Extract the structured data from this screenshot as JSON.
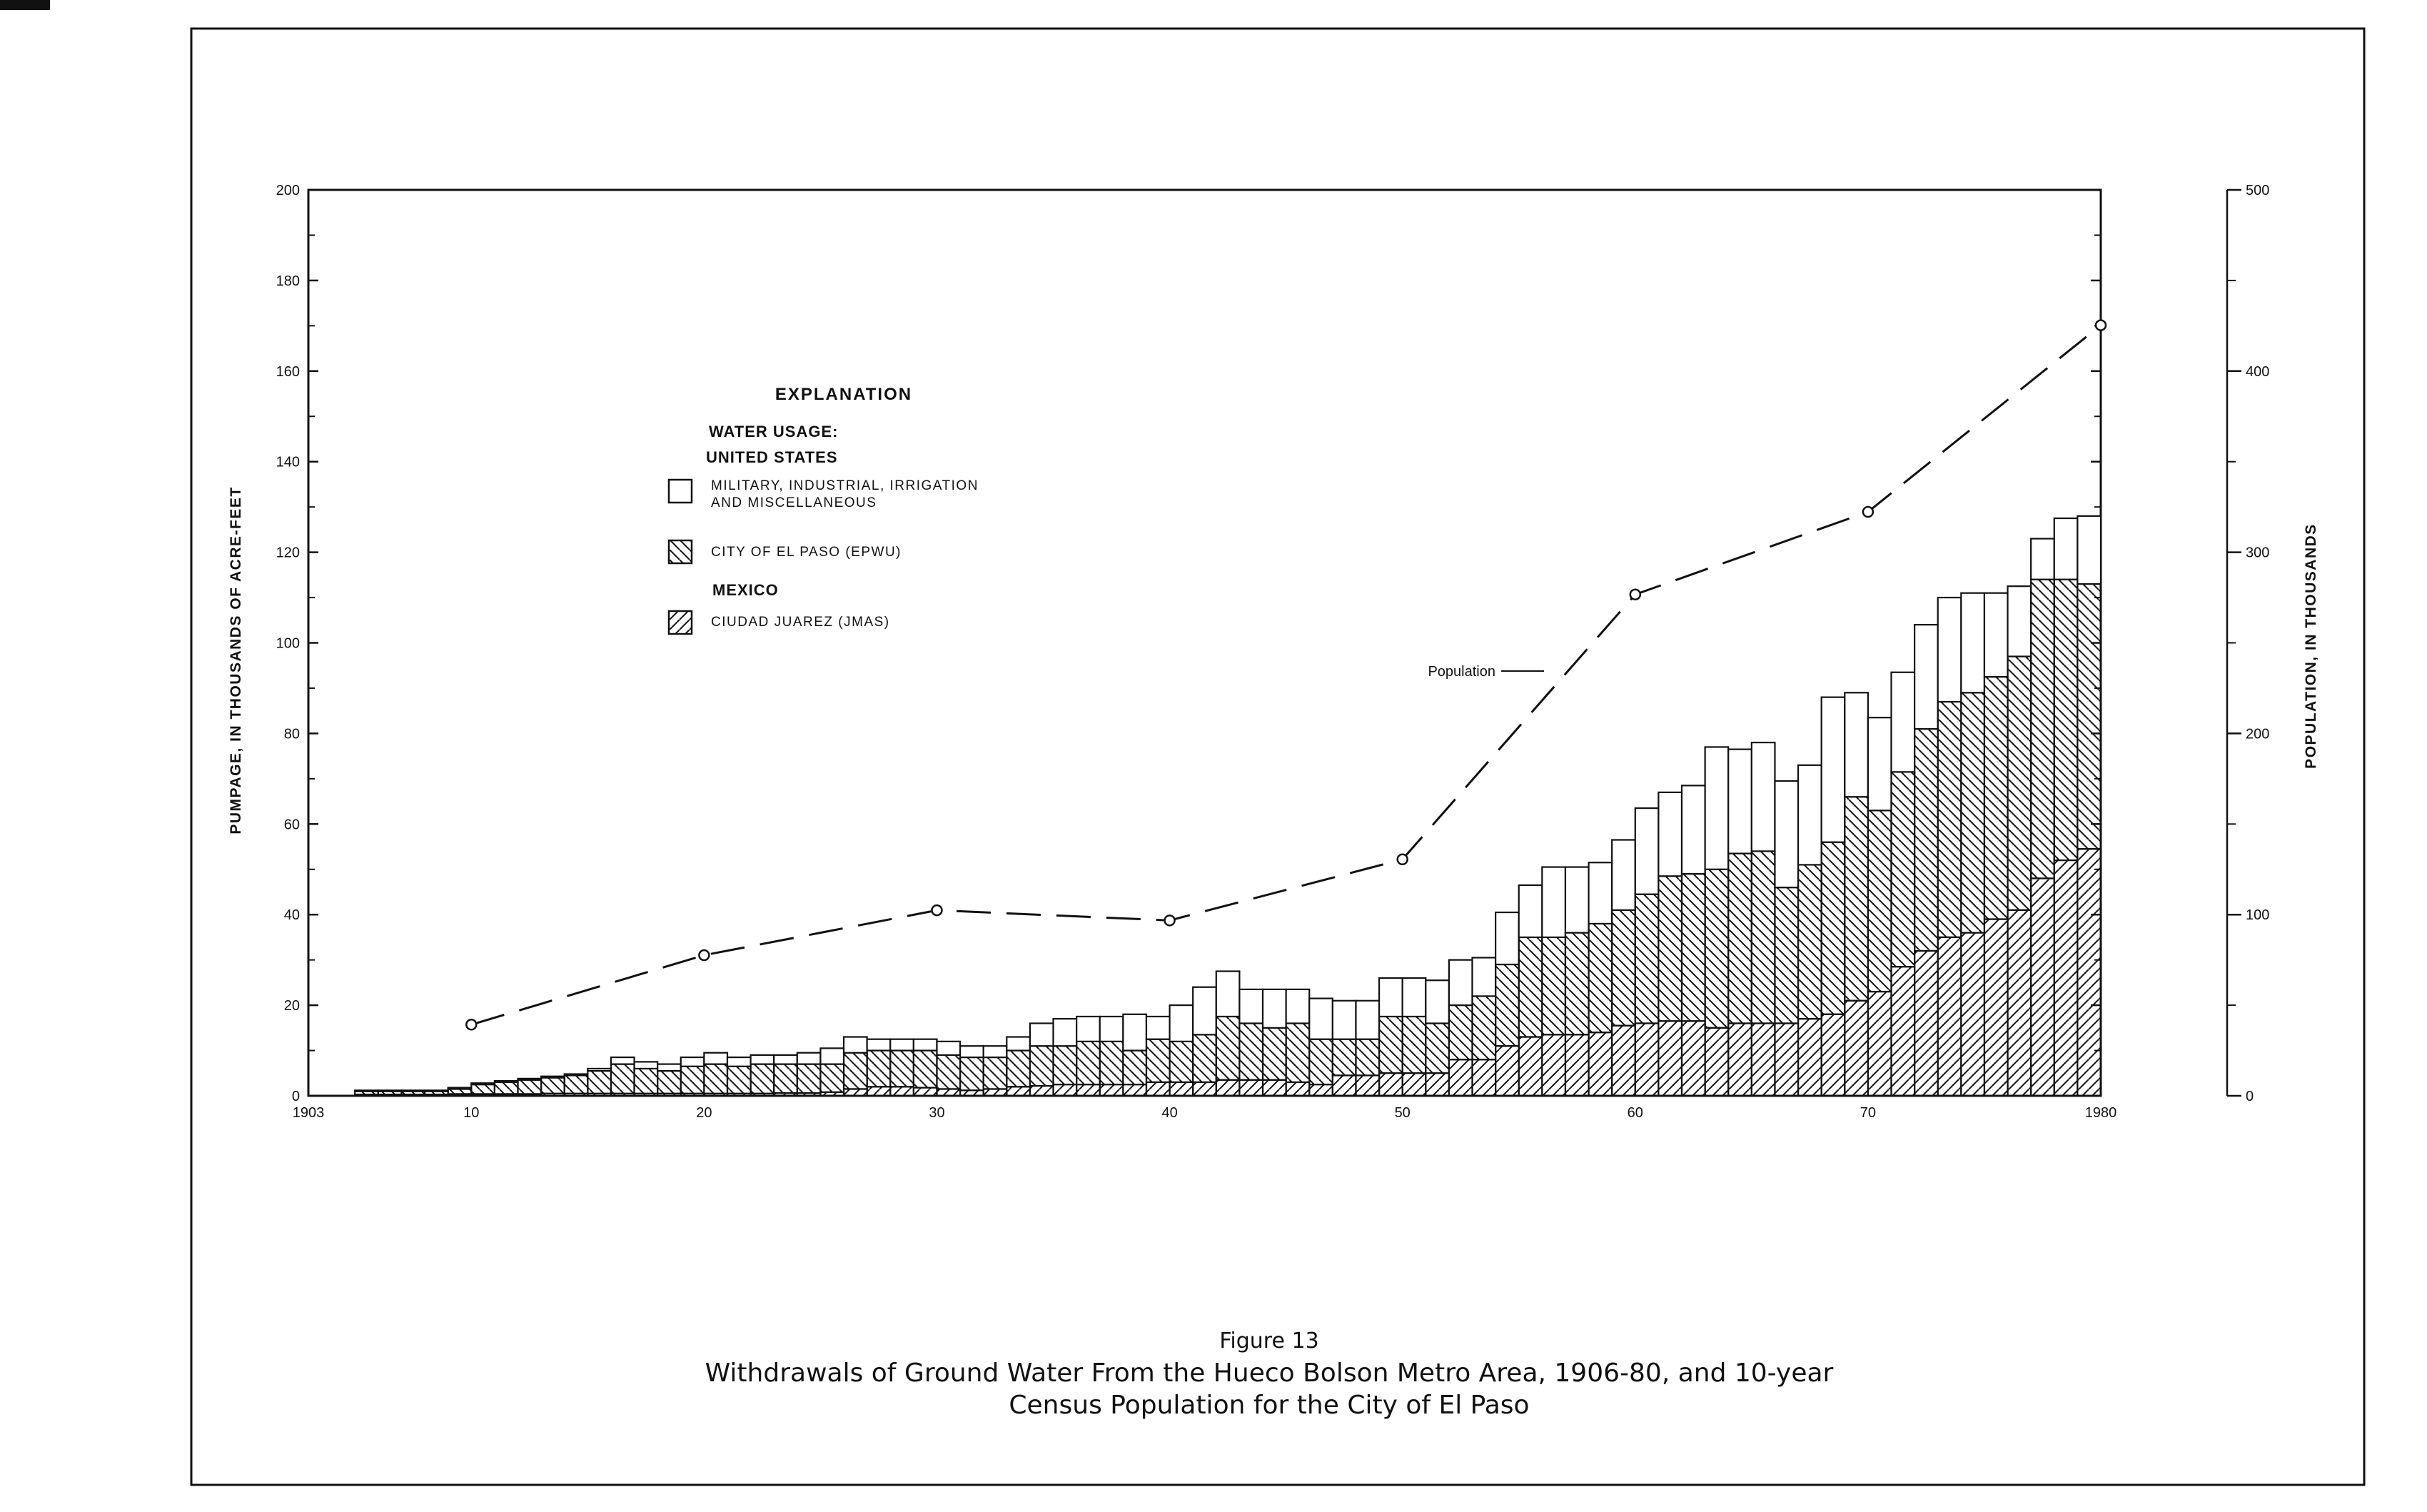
{
  "chart_data": {
    "type": "bar",
    "stacked": true,
    "figure_label": "Figure 13",
    "title": "Withdrawals of Ground Water From the Hueco Bolson Metro Area, 1906-80, and 10-year",
    "title_line2": "Census Population for the City of El Paso",
    "ylabel": "PUMPAGE, IN THOUSANDS OF ACRE-FEET",
    "y2label": "POPULATION, IN THOUSANDS",
    "xlim": [
      1903,
      1980
    ],
    "ylim": [
      0,
      200
    ],
    "y2lim": [
      0,
      500
    ],
    "x_ticks": [
      1903,
      1910,
      1920,
      1930,
      1940,
      1950,
      1960,
      1970,
      1980
    ],
    "x_tick_labels": [
      "1903",
      "10",
      "20",
      "30",
      "40",
      "50",
      "60",
      "70",
      "1980"
    ],
    "y_ticks": [
      0,
      20,
      40,
      60,
      80,
      100,
      120,
      140,
      160,
      180,
      200
    ],
    "y_tick_labels": [
      "0",
      "20",
      "40",
      "60",
      "80",
      "100",
      "120",
      "140",
      "160",
      "180",
      "200"
    ],
    "y2_ticks": [
      0,
      100,
      200,
      300,
      400,
      500
    ],
    "y2_tick_labels": [
      "0",
      "100",
      "200",
      "300",
      "400",
      "500"
    ],
    "years": [
      1906,
      1907,
      1908,
      1909,
      1910,
      1911,
      1912,
      1913,
      1914,
      1915,
      1916,
      1917,
      1918,
      1919,
      1920,
      1921,
      1922,
      1923,
      1924,
      1925,
      1926,
      1927,
      1928,
      1929,
      1930,
      1931,
      1932,
      1933,
      1934,
      1935,
      1936,
      1937,
      1938,
      1939,
      1940,
      1941,
      1942,
      1943,
      1944,
      1945,
      1946,
      1947,
      1948,
      1949,
      1950,
      1951,
      1952,
      1953,
      1954,
      1955,
      1956,
      1957,
      1958,
      1959,
      1960,
      1961,
      1962,
      1963,
      1964,
      1965,
      1966,
      1967,
      1968,
      1969,
      1970,
      1971,
      1972,
      1973,
      1974,
      1975,
      1976,
      1977,
      1978,
      1979,
      1980
    ],
    "series": [
      {
        "name": "CIUDAD JUAREZ (JMAS)",
        "pattern": "forward-hatch",
        "values": [
          0.3,
          0.3,
          0.3,
          0.3,
          0.4,
          0.4,
          0.4,
          0.4,
          0.5,
          0.5,
          0.5,
          0.5,
          0.5,
          0.5,
          0.5,
          0.5,
          0.5,
          0.5,
          0.6,
          0.6,
          0.8,
          1.5,
          2.0,
          2.0,
          1.8,
          1.5,
          1.2,
          1.5,
          2.0,
          2.2,
          2.5,
          2.5,
          2.5,
          2.5,
          3.0,
          3.0,
          3.0,
          3.5,
          3.5,
          3.5,
          3.0,
          2.5,
          4.5,
          4.5,
          5.0,
          5.0,
          5.0,
          8.0,
          8.0,
          11.0,
          13.0,
          13.5,
          13.5,
          14.0,
          15.5,
          16.0,
          16.5,
          16.5,
          15.0,
          16.0,
          16.0,
          16.0,
          17.0,
          18.0,
          21.0,
          23.0,
          28.5,
          32.0,
          35.0,
          36.0,
          39.0,
          41.0,
          48.0,
          52.0,
          54.5
        ]
      },
      {
        "name": "CITY OF EL PASO (EPWU)",
        "pattern": "back-hatch",
        "values": [
          0.7,
          0.7,
          0.7,
          0.7,
          1.1,
          2.1,
          2.6,
          3.1,
          3.5,
          4.0,
          5.0,
          6.5,
          5.5,
          5.0,
          6.0,
          6.5,
          6.0,
          6.5,
          6.4,
          6.4,
          6.2,
          8.0,
          8.0,
          8.0,
          8.2,
          7.5,
          7.3,
          7.0,
          8.0,
          8.8,
          8.5,
          9.5,
          9.5,
          7.5,
          9.5,
          9.0,
          10.5,
          14.0,
          12.5,
          11.5,
          13.0,
          10.0,
          8.0,
          8.0,
          12.5,
          12.5,
          11.0,
          12.0,
          14.0,
          18.0,
          22.0,
          21.5,
          22.5,
          24.0,
          25.5,
          28.5,
          32.0,
          32.5,
          35.0,
          37.5,
          38.0,
          30.0,
          34.0,
          38.0,
          45.0,
          40.0,
          43.0,
          49.0,
          52.0,
          53.0,
          53.5,
          56.0,
          66.0,
          62.0,
          58.5
        ]
      },
      {
        "name": "MILITARY, INDUSTRIAL, IRRIGATION AND MISCELLANEOUS",
        "pattern": "open",
        "values": [
          0.2,
          0.2,
          0.2,
          0.2,
          0.3,
          0.3,
          0.3,
          0.3,
          0.3,
          0.3,
          0.5,
          1.5,
          1.5,
          1.5,
          2.0,
          2.5,
          2.0,
          2.0,
          2.0,
          2.5,
          3.5,
          3.5,
          2.5,
          2.5,
          2.5,
          3.0,
          2.5,
          2.5,
          3.0,
          5.0,
          6.0,
          5.5,
          5.5,
          8.0,
          5.0,
          8.0,
          10.5,
          10.0,
          7.5,
          8.5,
          7.5,
          9.0,
          8.5,
          8.5,
          8.5,
          8.5,
          9.5,
          10.0,
          8.5,
          11.5,
          11.5,
          15.5,
          14.5,
          13.5,
          15.5,
          19.0,
          18.5,
          19.5,
          27.0,
          23.0,
          24.0,
          23.5,
          22.0,
          32.0,
          23.0,
          20.5,
          22.0,
          23.0,
          23.0,
          22.0,
          18.5,
          15.5,
          9.0,
          13.5,
          15.0
        ]
      }
    ],
    "population": {
      "name": "Population",
      "years": [
        1910,
        1920,
        1930,
        1940,
        1950,
        1960,
        1970,
        1980
      ],
      "values": [
        39.3,
        77.6,
        102.4,
        96.8,
        130.5,
        276.7,
        322.3,
        425.3
      ]
    },
    "legend": {
      "title": "EXPLANATION",
      "usage_heading": "WATER USAGE:",
      "us_heading": "UNITED STATES",
      "military_line1": "MILITARY, INDUSTRIAL, IRRIGATION",
      "military_line2": "AND MISCELLANEOUS",
      "epwu": "CITY OF EL PASO (EPWU)",
      "mexico_heading": "MEXICO",
      "jmas": "CIUDAD JUAREZ (JMAS)"
    },
    "annotation": "Population"
  }
}
